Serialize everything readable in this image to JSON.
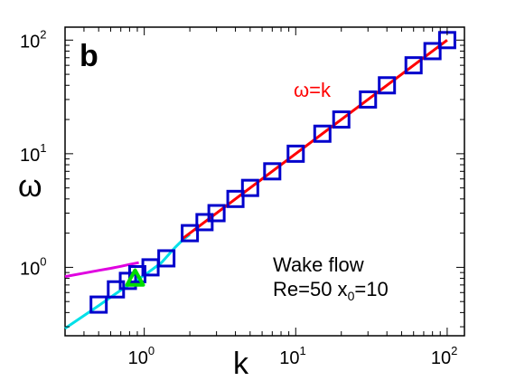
{
  "chart_data": {
    "type": "scatter",
    "scale": {
      "x": "log",
      "y": "log"
    },
    "xlim": [
      0.3,
      130
    ],
    "ylim": [
      0.25,
      130
    ],
    "grid": false,
    "xlabel": "k",
    "ylabel": "ω",
    "panel_label": "b",
    "x_ticks": [
      {
        "base": "10",
        "exp": "0",
        "value": 1
      },
      {
        "base": "10",
        "exp": "1",
        "value": 10
      },
      {
        "base": "10",
        "exp": "2",
        "value": 100
      }
    ],
    "y_ticks": [
      {
        "base": "10",
        "exp": "0",
        "value": 1
      },
      {
        "base": "10",
        "exp": "1",
        "value": 10
      },
      {
        "base": "10",
        "exp": "2",
        "value": 100
      }
    ],
    "annotations": {
      "line1": "Wake flow",
      "line2_a": "Re=50 x",
      "line2_sub": "0",
      "line2_b": "=10",
      "red_label": "ω=k"
    },
    "series": [
      {
        "kind": "squares",
        "color": "#0000cc",
        "points": [
          [
            0.5,
            0.47
          ],
          [
            0.65,
            0.64
          ],
          [
            0.78,
            0.76
          ],
          [
            0.9,
            0.87
          ],
          [
            1.1,
            1.0
          ],
          [
            1.4,
            1.2
          ],
          [
            2.0,
            2.0
          ],
          [
            2.5,
            2.5
          ],
          [
            3.0,
            3.0
          ],
          [
            4.0,
            4.0
          ],
          [
            5.0,
            5.0
          ],
          [
            7.0,
            7.0
          ],
          [
            10.0,
            10.0
          ],
          [
            15.0,
            15.0
          ],
          [
            20.0,
            20.0
          ],
          [
            30.0,
            30.0
          ],
          [
            40.0,
            40.0
          ],
          [
            60.0,
            60.0
          ],
          [
            80.0,
            80.0
          ],
          [
            100.0,
            100.0
          ]
        ]
      },
      {
        "kind": "line",
        "color": "#00e0e8",
        "points": [
          [
            0.3,
            0.29
          ],
          [
            0.5,
            0.46
          ],
          [
            0.7,
            0.63
          ],
          [
            1.0,
            0.85
          ],
          [
            1.3,
            1.1
          ],
          [
            1.6,
            1.5
          ],
          [
            1.8,
            1.75
          ],
          [
            2.0,
            1.95
          ]
        ]
      },
      {
        "kind": "line",
        "color": "#e000e0",
        "points": [
          [
            0.3,
            0.83
          ],
          [
            0.4,
            0.89
          ],
          [
            0.5,
            0.94
          ],
          [
            0.6,
            0.98
          ],
          [
            0.7,
            1.02
          ],
          [
            0.8,
            1.06
          ],
          [
            0.92,
            1.1
          ]
        ]
      },
      {
        "kind": "line",
        "color": "#ff0000",
        "points": [
          [
            1.8,
            1.8
          ],
          [
            100.0,
            100.0
          ]
        ]
      },
      {
        "kind": "triangle",
        "color": "#00dd00",
        "points": [
          [
            0.87,
            0.8
          ]
        ]
      }
    ]
  }
}
